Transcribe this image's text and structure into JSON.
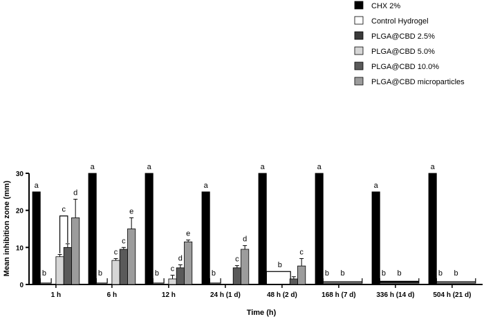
{
  "chart_data": {
    "type": "bar",
    "xlabel": "Time (h)",
    "ylabel": "Mean inhibition zone (mm)",
    "ylim": [
      0,
      30
    ],
    "yticks": [
      "0",
      "10",
      "20",
      "30"
    ],
    "categories": [
      "1 h",
      "6 h",
      "12 h",
      "24 h (1 d)",
      "48 h (2 d)",
      "168 h (7 d)",
      "336 h (14 d)",
      "504 h (21 d)"
    ],
    "legend_position": "top-right",
    "series": [
      {
        "name": "CHX 2%",
        "color": "#000000",
        "values": [
          25,
          30,
          30,
          25,
          30,
          30,
          25,
          30
        ],
        "errors": [
          0,
          0,
          0,
          0,
          0,
          0,
          0,
          0
        ],
        "labels": [
          "a",
          "a",
          "a",
          "a",
          "a",
          "a",
          "a",
          "a"
        ]
      },
      {
        "name": "Control Hydrogel",
        "color": "#ffffff",
        "values": [
          0,
          0,
          0,
          0,
          0,
          0,
          0,
          0
        ],
        "errors": [
          0,
          0,
          0,
          0,
          0,
          0,
          0,
          0
        ],
        "labels": [
          "b",
          "b",
          "b",
          "b",
          "",
          "b",
          "b",
          "b"
        ]
      },
      {
        "name": "PLGA@CBD 2.5%",
        "color": "#3a3a3a",
        "values": [
          0,
          0,
          0,
          0,
          0,
          0,
          0,
          0
        ],
        "errors": [
          0,
          0,
          0,
          0,
          0,
          0,
          0,
          0
        ],
        "labels": [
          "",
          "",
          "",
          "",
          "",
          "",
          "",
          ""
        ]
      },
      {
        "name": "PLGA@CBD 5.0%",
        "color": "#d6d6d6",
        "values": [
          7.5,
          6.5,
          1.5,
          0,
          0,
          0,
          0,
          0
        ],
        "errors": [
          0.6,
          0.5,
          1.0,
          0,
          0,
          0,
          0,
          0
        ],
        "labels": [
          "",
          "c",
          "c",
          "",
          "",
          "",
          "",
          ""
        ]
      },
      {
        "name": "PLGA@CBD 10.0%",
        "color": "#5a5a5a",
        "values": [
          10,
          9.5,
          4.5,
          4.5,
          1.5,
          0,
          0,
          0
        ],
        "errors": [
          1.0,
          0.5,
          0.8,
          0.6,
          0.6,
          0,
          0,
          0
        ],
        "labels": [
          "",
          "c",
          "d",
          "c",
          "",
          "",
          "",
          ""
        ]
      },
      {
        "name": "PLGA@CBD microparticles",
        "color": "#9c9c9c",
        "values": [
          18,
          15,
          11.5,
          9.5,
          5,
          0,
          0,
          0
        ],
        "errors": [
          5,
          3,
          0.5,
          1.0,
          2.0,
          0,
          0,
          0
        ],
        "labels": [
          "d",
          "e",
          "e",
          "d",
          "c",
          "",
          "",
          ""
        ]
      }
    ],
    "group_annotations": [
      {
        "category": "1 h",
        "from_series": 3,
        "to_series": 4,
        "label": "c"
      },
      {
        "category": "48 h (2 d)",
        "from_series": 1,
        "to_series": 4,
        "label": "b"
      },
      {
        "category": "168 h (7 d)",
        "from_series": 1,
        "to_series": 5,
        "label": "b"
      },
      {
        "category": "336 h (14 d)",
        "from_series": 1,
        "to_series": 5,
        "label": "b"
      },
      {
        "category": "504 h (21 d)",
        "from_series": 1,
        "to_series": 5,
        "label": "b"
      }
    ]
  }
}
